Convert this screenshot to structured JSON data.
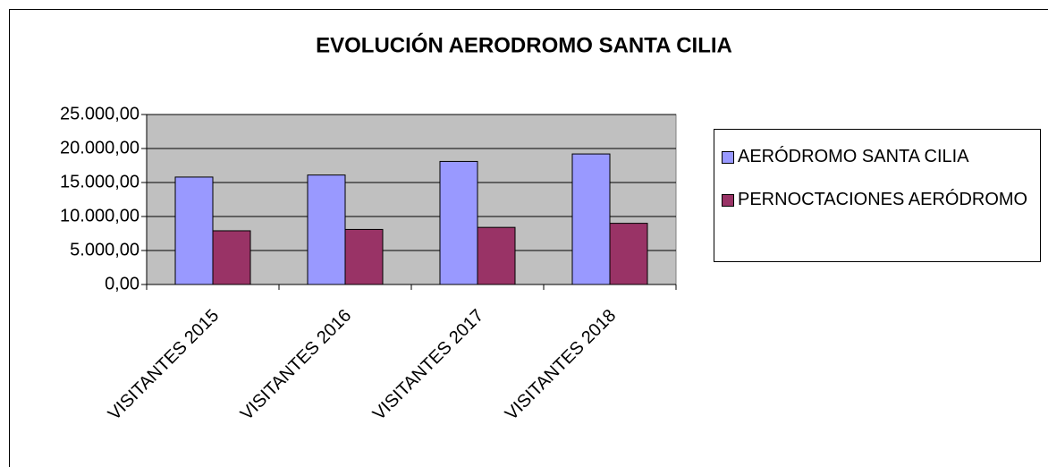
{
  "chart_data": {
    "type": "bar",
    "title": "EVOLUCIÓN AERODROMO SANTA CILIA",
    "categories": [
      "VISITANTES 2015",
      "VISITANTES 2016",
      "VISITANTES 2017",
      "VISITANTES 2018"
    ],
    "series": [
      {
        "name": "AERÓDROMO SANTA CILIA",
        "color": "#9999ff",
        "values": [
          15800,
          16100,
          18100,
          19200
        ]
      },
      {
        "name": "PERNOCTACIONES AERÓDROMO",
        "color": "#993366",
        "values": [
          7900,
          8100,
          8400,
          9000
        ]
      }
    ],
    "ylim": [
      0,
      25000
    ],
    "yticks": [
      {
        "value": 0,
        "label": "0,00"
      },
      {
        "value": 5000,
        "label": "5.000,00"
      },
      {
        "value": 10000,
        "label": "10.000,00"
      },
      {
        "value": 15000,
        "label": "15.000,00"
      },
      {
        "value": 20000,
        "label": "20.000,00"
      },
      {
        "value": 25000,
        "label": "25.000,00"
      }
    ],
    "grid": true,
    "legend": "right",
    "background": "#c0c0c0"
  }
}
